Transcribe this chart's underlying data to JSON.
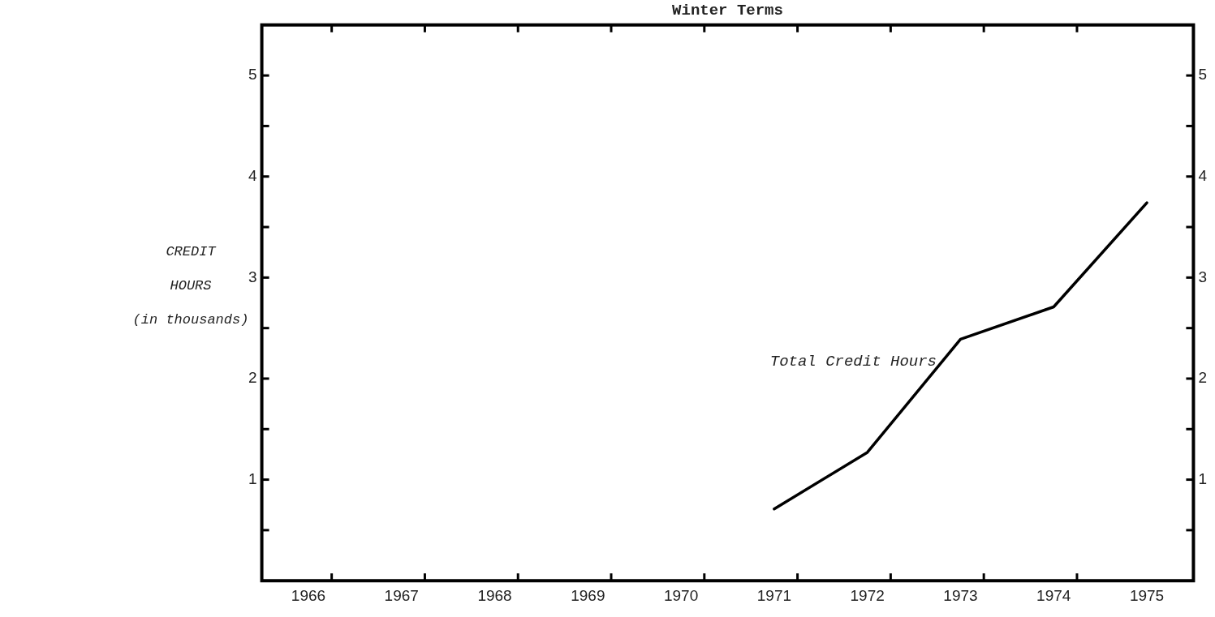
{
  "chart_data": {
    "type": "line",
    "title": "Winter Terms",
    "ylabel": "CREDIT HOURS (in thousands)",
    "categories": [
      "1966",
      "1967",
      "1968",
      "1969",
      "1970",
      "1971",
      "1972",
      "1973",
      "1974",
      "1975"
    ],
    "series": [
      {
        "name": "Total Credit Hours",
        "color": "#000000",
        "values": [
          null,
          null,
          null,
          null,
          null,
          0.71,
          1.27,
          2.39,
          2.71,
          3.74
        ]
      }
    ],
    "ylim": [
      0,
      5.5
    ],
    "yticks": [
      {
        "value": 0.5,
        "label": null
      },
      1,
      {
        "value": 1.5,
        "label": null
      },
      2,
      {
        "value": 2.5,
        "label": null
      },
      3,
      {
        "value": 3.5,
        "label": null
      },
      4,
      {
        "value": 4.5,
        "label": null
      },
      5
    ],
    "y2lim": [
      0,
      5.5
    ],
    "y2ticks": [
      {
        "value": 0.5,
        "label": null
      },
      1,
      {
        "value": 1.5,
        "label": null
      },
      2,
      {
        "value": 2.5,
        "label": null
      },
      3,
      {
        "value": 3.5,
        "label": null
      },
      4,
      {
        "value": 4.5,
        "label": null
      },
      5
    ],
    "grid": false,
    "legend": false,
    "marker": "none",
    "line_style": "solid"
  }
}
